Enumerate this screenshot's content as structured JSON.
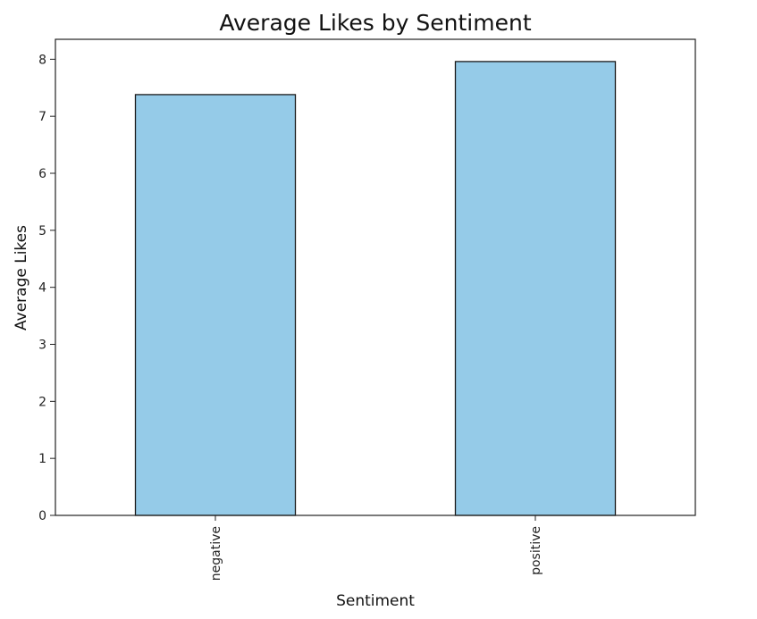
{
  "chart_data": {
    "type": "bar",
    "title": "Average Likes by Sentiment",
    "xlabel": "Sentiment",
    "ylabel": "Average Likes",
    "categories": [
      "negative",
      "positive"
    ],
    "values": [
      7.38,
      7.96
    ],
    "ylim": [
      0,
      8.35
    ],
    "yticks": [
      "0",
      "1",
      "2",
      "3",
      "4",
      "5",
      "6",
      "7",
      "8"
    ],
    "bar_color": "#95cbe8",
    "edge_color": "#1a1a1a",
    "grid": false,
    "legend": "none"
  }
}
